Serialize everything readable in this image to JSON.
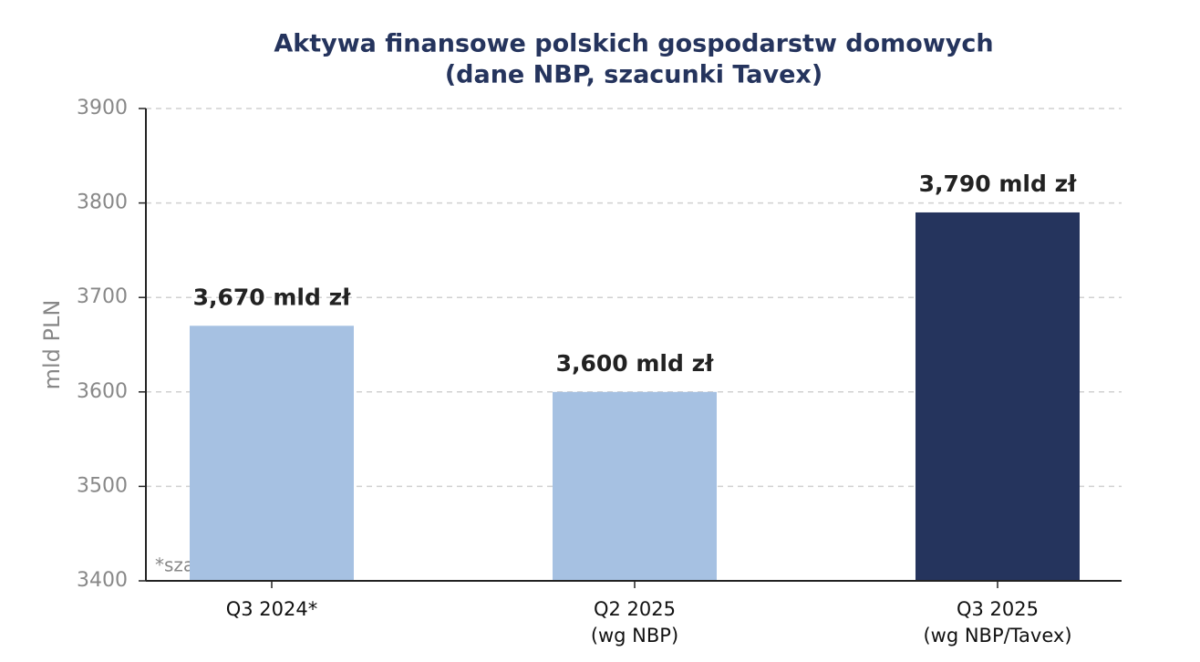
{
  "chart_data": {
    "type": "bar",
    "title": [
      "Aktywa finansowe polskich gospodarstw domowych",
      "(dane NBP, szacunki Tavex)"
    ],
    "categories": [
      [
        "Q3 2024*"
      ],
      [
        "Q2 2025",
        "(wg NBP)"
      ],
      [
        "Q3 2025",
        "(wg NBP/Tavex)"
      ]
    ],
    "values": [
      3670,
      3600,
      3790
    ],
    "value_labels": [
      "3,670 mld zł",
      "3,600 mld zł",
      "3,790 mld zł"
    ],
    "colors": [
      "#a6c1e2",
      "#a6c1e2",
      "#25345d"
    ],
    "ylabel": "mld PLN",
    "ylim": [
      3400,
      3900
    ],
    "yticks": [
      3400,
      3500,
      3600,
      3700,
      3800,
      3900
    ],
    "grid": true,
    "annotation": "*szacunek"
  }
}
